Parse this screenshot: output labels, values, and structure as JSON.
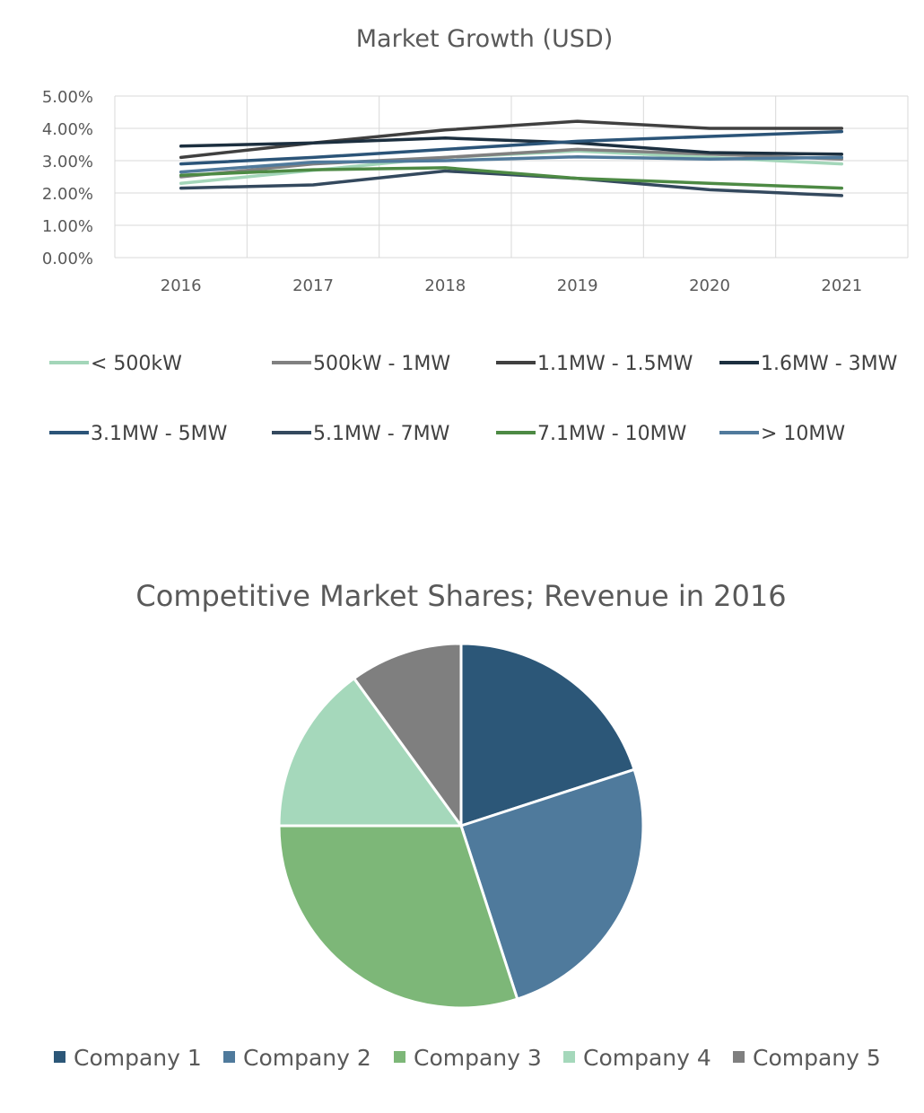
{
  "chart_data": [
    {
      "type": "line",
      "title": "Market Growth (USD)",
      "x": [
        "2016",
        "2017",
        "2018",
        "2019",
        "2020",
        "2021"
      ],
      "ylim": [
        0,
        5
      ],
      "yticks": [
        0,
        1,
        2,
        3,
        4,
        5
      ],
      "ytick_labels": [
        "0.00%",
        "1.00%",
        "2.00%",
        "3.00%",
        "4.00%",
        "5.00%"
      ],
      "y_unit": "percent",
      "grid": true,
      "legend_position": "bottom",
      "series": [
        {
          "name": "< 500kW",
          "color": "#a3d6b9",
          "values": [
            2.3,
            2.7,
            3.1,
            3.3,
            3.1,
            2.9
          ]
        },
        {
          "name": "500kW - 1MW",
          "color": "#808080",
          "values": [
            2.5,
            2.9,
            3.1,
            3.35,
            3.2,
            3.05
          ]
        },
        {
          "name": "1.1MW - 1.5MW",
          "color": "#404040",
          "values": [
            3.1,
            3.55,
            3.95,
            4.22,
            4.0,
            4.0
          ]
        },
        {
          "name": "1.6MW - 3MW",
          "color": "#1c2f3f",
          "values": [
            3.45,
            3.55,
            3.7,
            3.55,
            3.25,
            3.2
          ]
        },
        {
          "name": "3.1MW - 5MW",
          "color": "#2b5478",
          "values": [
            2.9,
            3.1,
            3.35,
            3.6,
            3.75,
            3.9
          ]
        },
        {
          "name": "5.1MW - 7MW",
          "color": "#34495e",
          "values": [
            2.15,
            2.25,
            2.68,
            2.45,
            2.1,
            1.92
          ]
        },
        {
          "name": "7.1MW - 10MW",
          "color": "#4d8a44",
          "values": [
            2.55,
            2.72,
            2.78,
            2.45,
            2.3,
            2.15
          ]
        },
        {
          "name": "> 10MW",
          "color": "#507a9c",
          "values": [
            2.65,
            2.95,
            3.0,
            3.12,
            3.05,
            3.1
          ]
        }
      ]
    },
    {
      "type": "pie",
      "title": "Competitive Market Shares; Revenue in 2016",
      "legend_position": "bottom",
      "categories": [
        "Company 1",
        "Company 2",
        "Company 3",
        "Company 4",
        "Company 5"
      ],
      "values": [
        20,
        25,
        30,
        15,
        10
      ],
      "colors": [
        "#2c5778",
        "#4f7a9c",
        "#7db778",
        "#a5d8bb",
        "#7f7f7f"
      ]
    }
  ]
}
